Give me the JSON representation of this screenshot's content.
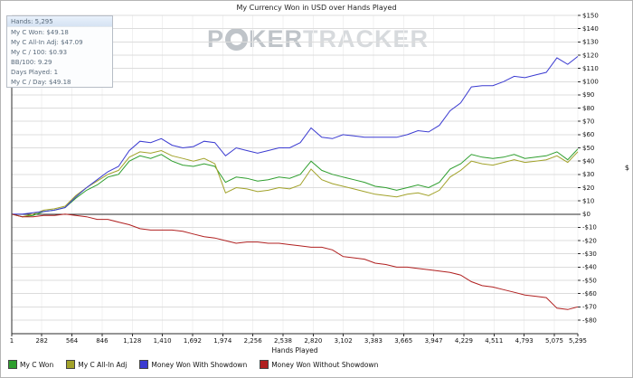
{
  "window": {
    "title": "My Currency Won in USD over Hands Played"
  },
  "watermark": {
    "part1": "P",
    "part2": "KER",
    "part3": "TRACKER",
    "chip_icon": "poker-chip-icon"
  },
  "stats_box": {
    "rows": [
      "Hands: 5,295",
      "My C Won: $49.18",
      "My C All-In Adj: $47.09",
      "My C / 100: $0.93",
      "BB/100: 9.29",
      "Days Played: 1",
      "My C / Day: $49.18"
    ]
  },
  "chart_data": {
    "type": "line",
    "title": "My Currency Won in USD over Hands Played",
    "xlabel": "Hands Played",
    "ylabel": "$",
    "xlim": [
      1,
      5295
    ],
    "ylim": [
      -80,
      150
    ],
    "grid": true,
    "legend_position": "bottom",
    "x_ticks": [
      1,
      282,
      564,
      846,
      1128,
      1410,
      1692,
      1974,
      2256,
      2538,
      2820,
      3102,
      3383,
      3665,
      3947,
      4229,
      4511,
      4793,
      5075,
      5295
    ],
    "x_tick_labels": [
      "1",
      "282",
      "564",
      "846",
      "1,128",
      "1,410",
      "1,692",
      "1,974",
      "2,256",
      "2,538",
      "2,820",
      "3,102",
      "3,383",
      "3,665",
      "3,947",
      "4,229",
      "4,511",
      "4,793",
      "5,075",
      "5,295"
    ],
    "y_ticks": [
      150,
      140,
      130,
      120,
      110,
      100,
      90,
      80,
      70,
      60,
      50,
      40,
      30,
      20,
      10,
      0,
      -10,
      -20,
      -30,
      -40,
      -50,
      -60,
      -70,
      -80
    ],
    "y_tick_labels": [
      "$150",
      "$140",
      "$130",
      "$120",
      "$110",
      "$100",
      "$90",
      "$80",
      "$70",
      "$60",
      "$50",
      "$40",
      "$30",
      "$20",
      "$10",
      "$0",
      "-$10",
      "-$20",
      "-$30",
      "-$40",
      "-$50",
      "-$60",
      "-$70",
      "-$80"
    ],
    "x": [
      1,
      100,
      200,
      300,
      400,
      500,
      600,
      700,
      800,
      900,
      1000,
      1100,
      1200,
      1300,
      1400,
      1500,
      1600,
      1700,
      1800,
      1900,
      2000,
      2100,
      2200,
      2300,
      2400,
      2500,
      2600,
      2700,
      2800,
      2900,
      3000,
      3100,
      3200,
      3300,
      3400,
      3500,
      3600,
      3700,
      3800,
      3900,
      4000,
      4100,
      4200,
      4300,
      4400,
      4500,
      4600,
      4700,
      4800,
      4900,
      5000,
      5100,
      5200,
      5295
    ],
    "series": [
      {
        "name": "My C Won",
        "color": "#2e9e2e",
        "values": [
          0,
          -2,
          -1,
          2,
          3,
          5,
          12,
          18,
          22,
          28,
          30,
          40,
          44,
          42,
          45,
          40,
          37,
          36,
          38,
          36,
          24,
          28,
          27,
          25,
          26,
          28,
          27,
          30,
          40,
          33,
          30,
          28,
          26,
          24,
          21,
          20,
          18,
          20,
          22,
          20,
          24,
          34,
          38,
          45,
          43,
          42,
          43,
          45,
          42,
          43,
          44,
          47,
          41,
          49.18
        ]
      },
      {
        "name": "My C All-In Adj",
        "color": "#a2a22a",
        "values": [
          0,
          -2,
          0,
          3,
          4,
          6,
          14,
          20,
          25,
          30,
          33,
          43,
          47,
          46,
          48,
          44,
          42,
          40,
          42,
          38,
          16,
          20,
          19,
          17,
          18,
          20,
          19,
          22,
          34,
          26,
          23,
          21,
          19,
          17,
          15,
          14,
          13,
          15,
          16,
          14,
          18,
          28,
          33,
          40,
          38,
          37,
          39,
          41,
          39,
          40,
          41,
          44,
          39,
          47.09
        ]
      },
      {
        "name": "Money Won With Showdown",
        "color": "#3b3bd1",
        "values": [
          0,
          0,
          1,
          2,
          3,
          5,
          13,
          20,
          26,
          32,
          36,
          48,
          55,
          54,
          57,
          52,
          50,
          51,
          55,
          54,
          44,
          50,
          48,
          46,
          48,
          50,
          50,
          54,
          65,
          58,
          57,
          60,
          59,
          58,
          58,
          58,
          58,
          60,
          63,
          62,
          67,
          78,
          84,
          96,
          97,
          97,
          100,
          104,
          103,
          105,
          107,
          118,
          113,
          119
        ]
      },
      {
        "name": "Money Won Without Showdown",
        "color": "#b02020",
        "values": [
          0,
          -2,
          -2,
          -1,
          -1,
          0,
          -1,
          -2,
          -4,
          -4,
          -6,
          -8,
          -11,
          -12,
          -12,
          -12,
          -13,
          -15,
          -17,
          -18,
          -20,
          -22,
          -21,
          -21,
          -22,
          -22,
          -23,
          -24,
          -25,
          -25,
          -27,
          -32,
          -33,
          -34,
          -37,
          -38,
          -40,
          -40,
          -41,
          -42,
          -43,
          -44,
          -46,
          -51,
          -54,
          -55,
          -57,
          -59,
          -61,
          -62,
          -63,
          -71,
          -72,
          -70
        ]
      }
    ]
  }
}
